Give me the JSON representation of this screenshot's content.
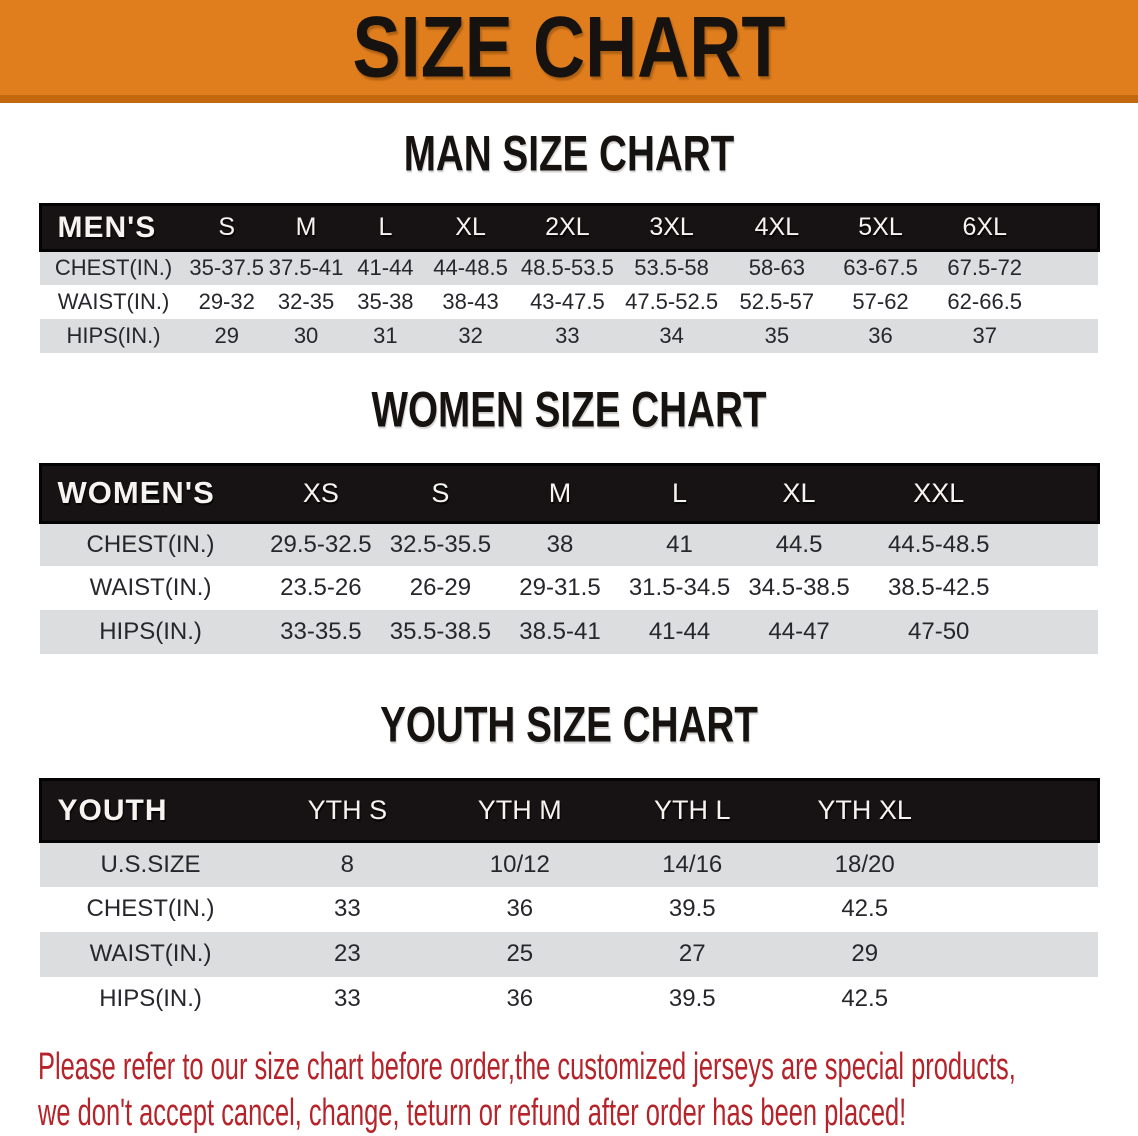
{
  "banner": {
    "title": "SIZE CHART"
  },
  "sections": [
    {
      "heading": "MAN SIZE CHART",
      "table": {
        "header_label": "MEN'S",
        "columns": [
          "S",
          "M",
          "L",
          "XL",
          "2XL",
          "3XL",
          "4XL",
          "5XL",
          "6XL"
        ],
        "rows": [
          {
            "label": "CHEST(IN.)",
            "values": [
              "35-37.5",
              "37.5-41",
              "41-44",
              "44-48.5",
              "48.5-53.5",
              "53.5-58",
              "58-63",
              "63-67.5",
              "67.5-72"
            ]
          },
          {
            "label": "WAIST(IN.)",
            "values": [
              "29-32",
              "32-35",
              "35-38",
              "38-43",
              "43-47.5",
              "47.5-52.5",
              "52.5-57",
              "57-62",
              "62-66.5"
            ]
          },
          {
            "label": "HIPS(IN.)",
            "values": [
              "29",
              "30",
              "31",
              "32",
              "33",
              "34",
              "35",
              "36",
              "37"
            ]
          }
        ]
      }
    },
    {
      "heading": "WOMEN SIZE CHART",
      "table": {
        "header_label": "WOMEN'S",
        "columns": [
          "XS",
          "S",
          "M",
          "L",
          "XL",
          "XXL"
        ],
        "rows": [
          {
            "label": "CHEST(IN.)",
            "values": [
              "29.5-32.5",
              "32.5-35.5",
              "38",
              "41",
              "44.5",
              "44.5-48.5"
            ]
          },
          {
            "label": "WAIST(IN.)",
            "values": [
              "23.5-26",
              "26-29",
              "29-31.5",
              "31.5-34.5",
              "34.5-38.5",
              "38.5-42.5"
            ]
          },
          {
            "label": "HIPS(IN.)",
            "values": [
              "33-35.5",
              "35.5-38.5",
              "38.5-41",
              "41-44",
              "44-47",
              "47-50"
            ]
          }
        ]
      }
    },
    {
      "heading": "YOUTH SIZE CHART",
      "table": {
        "header_label": "YOUTH",
        "columns": [
          "YTH S",
          "YTH M",
          "YTH L",
          "YTH XL"
        ],
        "rows": [
          {
            "label": "U.S.SIZE",
            "values": [
              "8",
              "10/12",
              "14/16",
              "18/20"
            ]
          },
          {
            "label": "CHEST(IN.)",
            "values": [
              "33",
              "36",
              "39.5",
              "42.5"
            ]
          },
          {
            "label": "WAIST(IN.)",
            "values": [
              "23",
              "25",
              "27",
              "29"
            ]
          },
          {
            "label": "HIPS(IN.)",
            "values": [
              "33",
              "36",
              "39.5",
              "42.5"
            ]
          }
        ]
      }
    }
  ],
  "disclaimer": {
    "lines": [
      "Please refer to our size chart before order,the customized jerseys are special products,",
      "we don't accept cancel, change, teturn or refund after order has been placed!"
    ]
  },
  "colors": {
    "banner_bg": "#E07E1E",
    "banner_accent": "#C2690F",
    "table_header_bg": "#171314",
    "row_stripe": "#DCDDDE",
    "disclaimer_red": "#B5242B"
  }
}
